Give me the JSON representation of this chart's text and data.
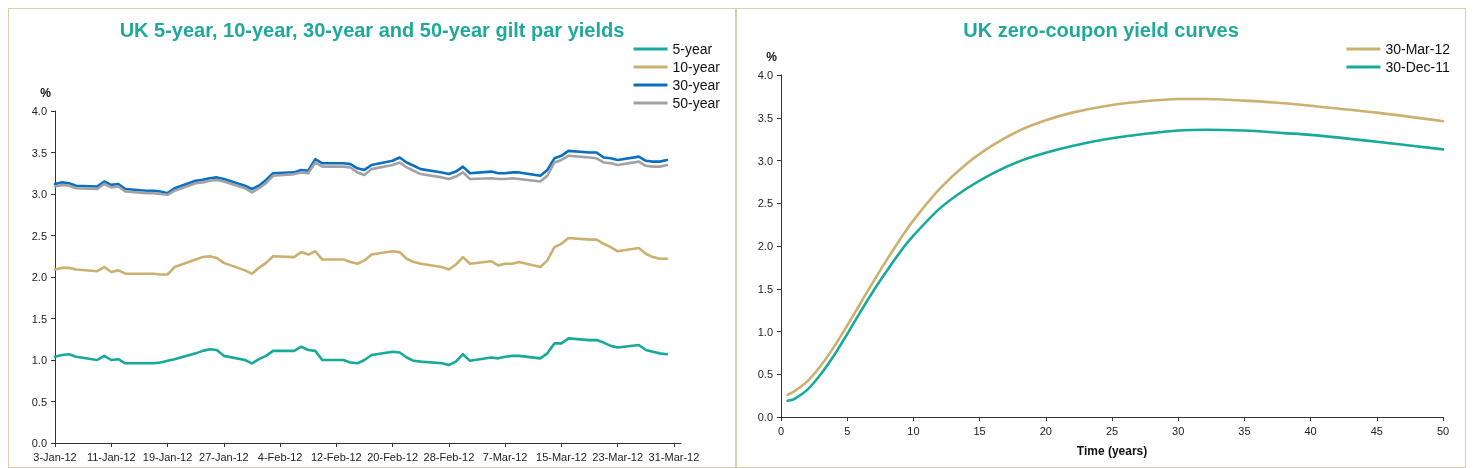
{
  "chart_data": [
    {
      "type": "line",
      "title": "UK 5-year, 10-year, 30-year and 50-year gilt par yields",
      "ylabel": "%",
      "x": [
        "--01-03",
        "--01-04",
        "--01-05",
        "--01-06",
        "--01-09",
        "--01-10",
        "--01-11",
        "--01-12",
        "--01-13",
        "--01-16",
        "--01-17",
        "--01-18",
        "--01-19",
        "--01-20",
        "--01-23",
        "--01-24",
        "--01-25",
        "--01-26",
        "--01-27",
        "--01-30",
        "--01-31",
        "--02-01",
        "--02-02",
        "--02-03",
        "--02-06",
        "--02-07",
        "--02-08",
        "--02-09",
        "--02-10",
        "--02-13",
        "--02-14",
        "--02-15",
        "--02-16",
        "--02-17",
        "--02-20",
        "--02-21",
        "--02-22",
        "--02-23",
        "--02-24",
        "--02-27",
        "--02-28",
        "--02-29",
        "--03-01",
        "--03-02",
        "--03-05",
        "--03-06",
        "--03-07",
        "--03-08",
        "--03-09",
        "--03-12",
        "--03-13",
        "--03-14",
        "--03-15",
        "--03-16",
        "--03-19",
        "--03-20",
        "--03-21",
        "--03-22",
        "--03-23",
        "--03-26",
        "--03-27",
        "--03-28",
        "--03-29",
        "--03-30"
      ],
      "series": [
        {
          "name": "5-year",
          "color": "#17a999",
          "values": [
            1.04,
            1.06,
            1.07,
            1.04,
            1.0,
            1.05,
            1.0,
            1.01,
            0.96,
            0.96,
            0.96,
            0.97,
            0.99,
            1.01,
            1.08,
            1.11,
            1.13,
            1.12,
            1.05,
            1.0,
            0.96,
            1.01,
            1.05,
            1.11,
            1.11,
            1.16,
            1.12,
            1.11,
            1.0,
            1.0,
            0.97,
            0.96,
            1.0,
            1.06,
            1.1,
            1.09,
            1.03,
            0.99,
            0.98,
            0.96,
            0.94,
            0.98,
            1.07,
            0.99,
            1.03,
            1.02,
            1.04,
            1.05,
            1.05,
            1.02,
            1.08,
            1.2,
            1.2,
            1.26,
            1.24,
            1.24,
            1.21,
            1.17,
            1.15,
            1.18,
            1.12,
            1.1,
            1.08,
            1.07
          ]
        },
        {
          "name": "10-year",
          "color": "#cbb06f",
          "values": [
            2.09,
            2.11,
            2.11,
            2.09,
            2.07,
            2.12,
            2.06,
            2.08,
            2.04,
            2.04,
            2.04,
            2.03,
            2.03,
            2.12,
            2.21,
            2.24,
            2.25,
            2.23,
            2.17,
            2.08,
            2.04,
            2.11,
            2.17,
            2.25,
            2.24,
            2.3,
            2.27,
            2.31,
            2.21,
            2.21,
            2.18,
            2.16,
            2.2,
            2.27,
            2.31,
            2.3,
            2.22,
            2.18,
            2.16,
            2.12,
            2.09,
            2.15,
            2.24,
            2.16,
            2.19,
            2.14,
            2.16,
            2.16,
            2.18,
            2.12,
            2.2,
            2.36,
            2.4,
            2.47,
            2.45,
            2.45,
            2.4,
            2.36,
            2.31,
            2.35,
            2.28,
            2.24,
            2.22,
            2.22
          ]
        },
        {
          "name": "30-year",
          "color": "#0a6fc2",
          "values": [
            3.12,
            3.14,
            3.13,
            3.1,
            3.09,
            3.15,
            3.11,
            3.12,
            3.06,
            3.04,
            3.04,
            3.03,
            3.01,
            3.07,
            3.16,
            3.17,
            3.19,
            3.2,
            3.18,
            3.1,
            3.06,
            3.1,
            3.17,
            3.25,
            3.26,
            3.29,
            3.28,
            3.42,
            3.37,
            3.37,
            3.36,
            3.31,
            3.29,
            3.35,
            3.4,
            3.44,
            3.38,
            3.34,
            3.3,
            3.26,
            3.24,
            3.27,
            3.33,
            3.25,
            3.27,
            3.25,
            3.25,
            3.26,
            3.26,
            3.22,
            3.29,
            3.43,
            3.46,
            3.52,
            3.5,
            3.5,
            3.44,
            3.43,
            3.41,
            3.45,
            3.4,
            3.39,
            3.39,
            3.41
          ]
        },
        {
          "name": "50-year",
          "color": "#a2a2a6",
          "values": [
            3.09,
            3.11,
            3.1,
            3.07,
            3.06,
            3.12,
            3.08,
            3.09,
            3.03,
            3.01,
            3.01,
            3.0,
            2.99,
            3.04,
            3.13,
            3.14,
            3.16,
            3.17,
            3.15,
            3.07,
            3.02,
            3.07,
            3.13,
            3.22,
            3.24,
            3.26,
            3.25,
            3.38,
            3.33,
            3.33,
            3.32,
            3.26,
            3.23,
            3.3,
            3.35,
            3.38,
            3.32,
            3.28,
            3.24,
            3.2,
            3.18,
            3.21,
            3.26,
            3.18,
            3.19,
            3.18,
            3.18,
            3.19,
            3.18,
            3.15,
            3.22,
            3.38,
            3.41,
            3.46,
            3.44,
            3.43,
            3.38,
            3.37,
            3.35,
            3.39,
            3.34,
            3.33,
            3.33,
            3.35
          ]
        }
      ],
      "xlim": [
        "--01-03",
        "--04-01"
      ],
      "xticks": [
        {
          "value": "--01-03",
          "label": "3-Jan-12"
        },
        {
          "value": "--01-11",
          "label": "11-Jan-12"
        },
        {
          "value": "--01-19",
          "label": "19-Jan-12"
        },
        {
          "value": "--01-27",
          "label": "27-Jan-12"
        },
        {
          "value": "--02-04",
          "label": "4-Feb-12"
        },
        {
          "value": "--02-12",
          "label": "12-Feb-12"
        },
        {
          "value": "--02-20",
          "label": "20-Feb-12"
        },
        {
          "value": "--02-28",
          "label": "28-Feb-12"
        },
        {
          "value": "--03-07",
          "label": "7-Mar-12"
        },
        {
          "value": "--03-15",
          "label": "15-Mar-12"
        },
        {
          "value": "--03-23",
          "label": "23-Mar-12"
        },
        {
          "value": "--03-31",
          "label": "31-Mar-12"
        }
      ],
      "ylim": [
        0,
        4
      ],
      "yticks": [
        {
          "value": 0,
          "label": "0.0"
        },
        0.5,
        {
          "value": 1,
          "label": "1.0"
        },
        1.5,
        {
          "value": 2,
          "label": "2.0"
        },
        2.5,
        {
          "value": 3,
          "label": "3.0"
        },
        3.5,
        {
          "value": 4,
          "label": "4.0"
        }
      ],
      "grid": false,
      "legend": "top right",
      "marker": "none",
      "line_style": "solid"
    },
    {
      "type": "line",
      "title": "UK zero-coupon yield curves",
      "ylabel": "%",
      "xlabel": "Time (years)",
      "x": [
        0.5,
        1,
        2,
        3,
        4,
        5,
        6,
        7,
        8,
        9,
        10,
        12,
        14,
        16,
        18,
        20,
        22,
        25,
        28,
        30,
        32,
        35,
        38,
        40,
        45,
        50
      ],
      "series": [
        {
          "name": "30-Mar-12",
          "color": "#cbb06f",
          "values": [
            0.26,
            0.3,
            0.42,
            0.6,
            0.82,
            1.07,
            1.33,
            1.59,
            1.84,
            2.08,
            2.3,
            2.67,
            2.96,
            3.18,
            3.35,
            3.47,
            3.56,
            3.65,
            3.7,
            3.72,
            3.72,
            3.7,
            3.67,
            3.64,
            3.56,
            3.46
          ]
        },
        {
          "name": "30-Dec-11",
          "color": "#17a999",
          "values": [
            0.19,
            0.21,
            0.32,
            0.5,
            0.72,
            0.97,
            1.23,
            1.48,
            1.71,
            1.93,
            2.12,
            2.44,
            2.67,
            2.85,
            2.99,
            3.09,
            3.17,
            3.26,
            3.32,
            3.35,
            3.36,
            3.35,
            3.32,
            3.3,
            3.22,
            3.13
          ]
        }
      ],
      "xlim": [
        0,
        50
      ],
      "xticks": [
        0,
        5,
        10,
        15,
        20,
        25,
        30,
        35,
        40,
        45,
        50
      ],
      "ylim": [
        0,
        4
      ],
      "yticks": [
        {
          "value": 0,
          "label": "0.0"
        },
        0.5,
        {
          "value": 1,
          "label": "1.0"
        },
        1.5,
        {
          "value": 2,
          "label": "2.0"
        },
        2.5,
        {
          "value": 3,
          "label": "3.0"
        },
        3.5,
        {
          "value": 4,
          "label": "4.0"
        }
      ],
      "grid": false,
      "legend": "top right",
      "marker": "none",
      "line_style": "solid"
    }
  ]
}
